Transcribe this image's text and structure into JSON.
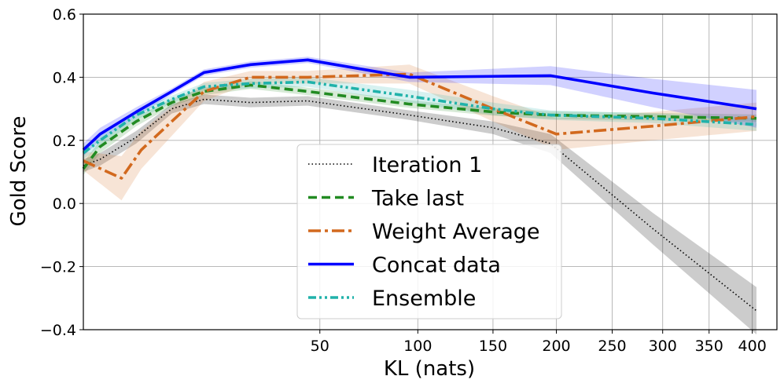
{
  "chart_data": {
    "type": "line",
    "title": "",
    "xlabel": "KL (nats)",
    "ylabel": "Gold Score",
    "xscale": "sqrt",
    "xlim": [
      0,
      430
    ],
    "ylim": [
      -0.4,
      0.6
    ],
    "xticks": [
      50,
      100,
      150,
      200,
      250,
      300,
      350,
      400
    ],
    "xtick_labels": [
      "50",
      "100",
      "150",
      "200",
      "250",
      "300",
      "350",
      "400"
    ],
    "yticks": [
      -0.4,
      -0.2,
      0.0,
      0.2,
      0.4,
      0.6
    ],
    "ytick_labels": [
      "−0.4",
      "−0.2",
      "0.0",
      "0.2",
      "0.4",
      "0.6"
    ],
    "grid": true,
    "legend_position": "lower-center",
    "series": [
      {
        "name": "Iteration 1",
        "color": "#000000",
        "style": "dotted",
        "x": [
          0,
          0.25,
          2.5,
          7,
          13,
          25,
          45,
          95,
          150,
          195,
          290,
          405
        ],
        "y": [
          0.12,
          0.14,
          0.21,
          0.3,
          0.33,
          0.32,
          0.325,
          0.28,
          0.24,
          0.19,
          -0.08,
          -0.34
        ],
        "band": [
          0.02,
          0.02,
          0.02,
          0.015,
          0.015,
          0.015,
          0.015,
          0.015,
          0.02,
          0.03,
          0.05,
          0.075
        ]
      },
      {
        "name": "Take last",
        "color": "#228b22",
        "style": "dashed",
        "x": [
          0,
          0.25,
          2.5,
          7,
          13,
          25,
          45,
          95,
          150,
          195,
          290,
          405
        ],
        "y": [
          0.11,
          0.18,
          0.26,
          0.32,
          0.355,
          0.375,
          0.355,
          0.315,
          0.29,
          0.28,
          0.275,
          0.27
        ],
        "band": [
          0.02,
          0.02,
          0.015,
          0.012,
          0.012,
          0.012,
          0.012,
          0.012,
          0.012,
          0.012,
          0.012,
          0.012
        ]
      },
      {
        "name": "Weight Average",
        "color": "#d2691e",
        "style": "dashdot",
        "x": [
          0,
          1.3,
          3,
          13,
          25,
          45,
          95,
          150,
          200,
          290,
          405
        ],
        "y": [
          0.135,
          0.08,
          0.17,
          0.355,
          0.4,
          0.4,
          0.41,
          0.3,
          0.22,
          0.245,
          0.275
        ],
        "band": [
          0.03,
          0.07,
          0.06,
          0.03,
          0.02,
          0.02,
          0.03,
          0.04,
          0.05,
          0.045,
          0.045
        ]
      },
      {
        "name": "Concat data",
        "color": "#0000ff",
        "style": "solid",
        "x": [
          0,
          0.25,
          2.5,
          7,
          13,
          25,
          45,
          95,
          195,
          290,
          405
        ],
        "y": [
          0.17,
          0.22,
          0.29,
          0.355,
          0.415,
          0.44,
          0.455,
          0.4,
          0.405,
          0.35,
          0.3
        ],
        "band": [
          0.02,
          0.02,
          0.015,
          0.01,
          0.01,
          0.01,
          0.01,
          0.015,
          0.03,
          0.045,
          0.06
        ]
      },
      {
        "name": "Ensemble",
        "color": "#20b2aa",
        "style": "dashdotdot",
        "x": [
          0,
          0.25,
          2.5,
          7,
          13,
          25,
          45,
          95,
          150,
          195,
          290,
          405
        ],
        "y": [
          0.16,
          0.2,
          0.28,
          0.33,
          0.37,
          0.38,
          0.385,
          0.34,
          0.3,
          0.28,
          0.27,
          0.25
        ],
        "band": [
          0.02,
          0.02,
          0.015,
          0.012,
          0.012,
          0.015,
          0.015,
          0.02,
          0.02,
          0.015,
          0.015,
          0.02
        ]
      }
    ]
  }
}
